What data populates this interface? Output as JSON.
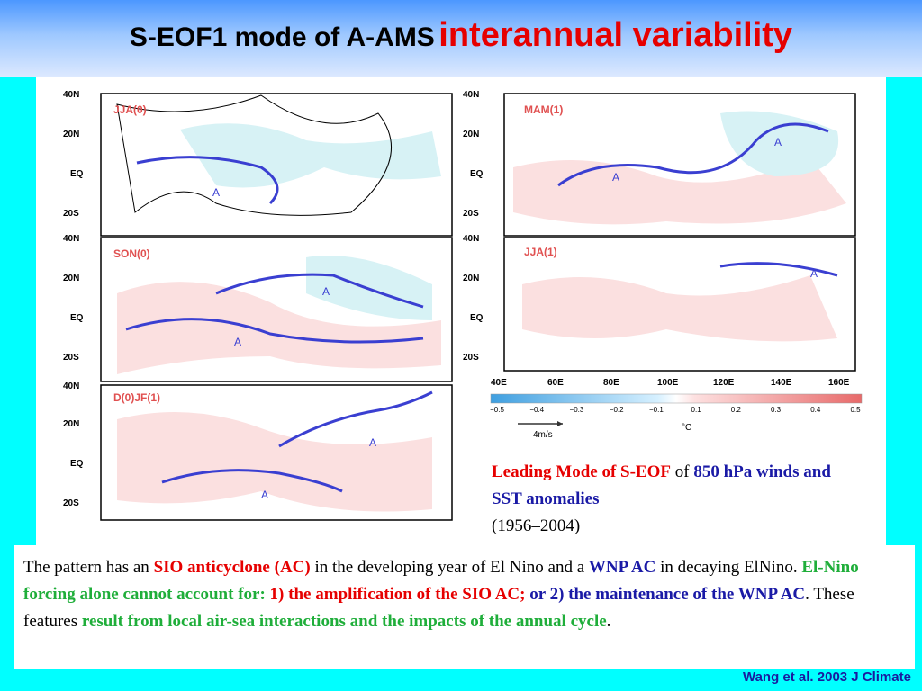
{
  "slide": {
    "title_prefix": "S-EOF1 mode of A-AMS",
    "title_emphasis": "interannual variability",
    "credit": "Wang et al. 2003 J Climate"
  },
  "figure": {
    "panels_left": [
      "JJA(0)",
      "SON(0)",
      "D(0)JF(1)"
    ],
    "panels_right": [
      "MAM(1)",
      "JJA(1)"
    ],
    "lat_labels": [
      "40N",
      "20N",
      "EQ",
      "20S"
    ],
    "lon_labels": [
      "40E",
      "60E",
      "80E",
      "100E",
      "120E",
      "140E",
      "160E"
    ],
    "anticyclone_label": "A",
    "colorbar_ticks": [
      "−0.5",
      "−0.4",
      "−0.3",
      "−0.2",
      "−0.1",
      "0.1",
      "0.2",
      "0.3",
      "0.4",
      "0.5"
    ],
    "colorbar_unit": "°C",
    "vector_scale_label": "4m/s"
  },
  "caption": {
    "part1": "Leading Mode of S-EOF",
    "part2": " of ",
    "part3": "850 hPa winds and SST anomalies",
    "part4": "(1956–2004)"
  },
  "description": {
    "s1": "The pattern has an ",
    "s2": "SIO anticyclone (AC)",
    "s3": " in the developing year of El Nino and a ",
    "s4": "WNP AC",
    "s5": " in decaying ElNino.  ",
    "s6": "El-Nino forcing alone cannot account for: ",
    "s7": "1) the amplification of the SIO AC;",
    "s8": " or 2) the maintenance of the WNP AC",
    "s9": ".  These features ",
    "s10": "result from local air-sea interactions and the impacts of the annual cycle",
    "s11": "."
  }
}
